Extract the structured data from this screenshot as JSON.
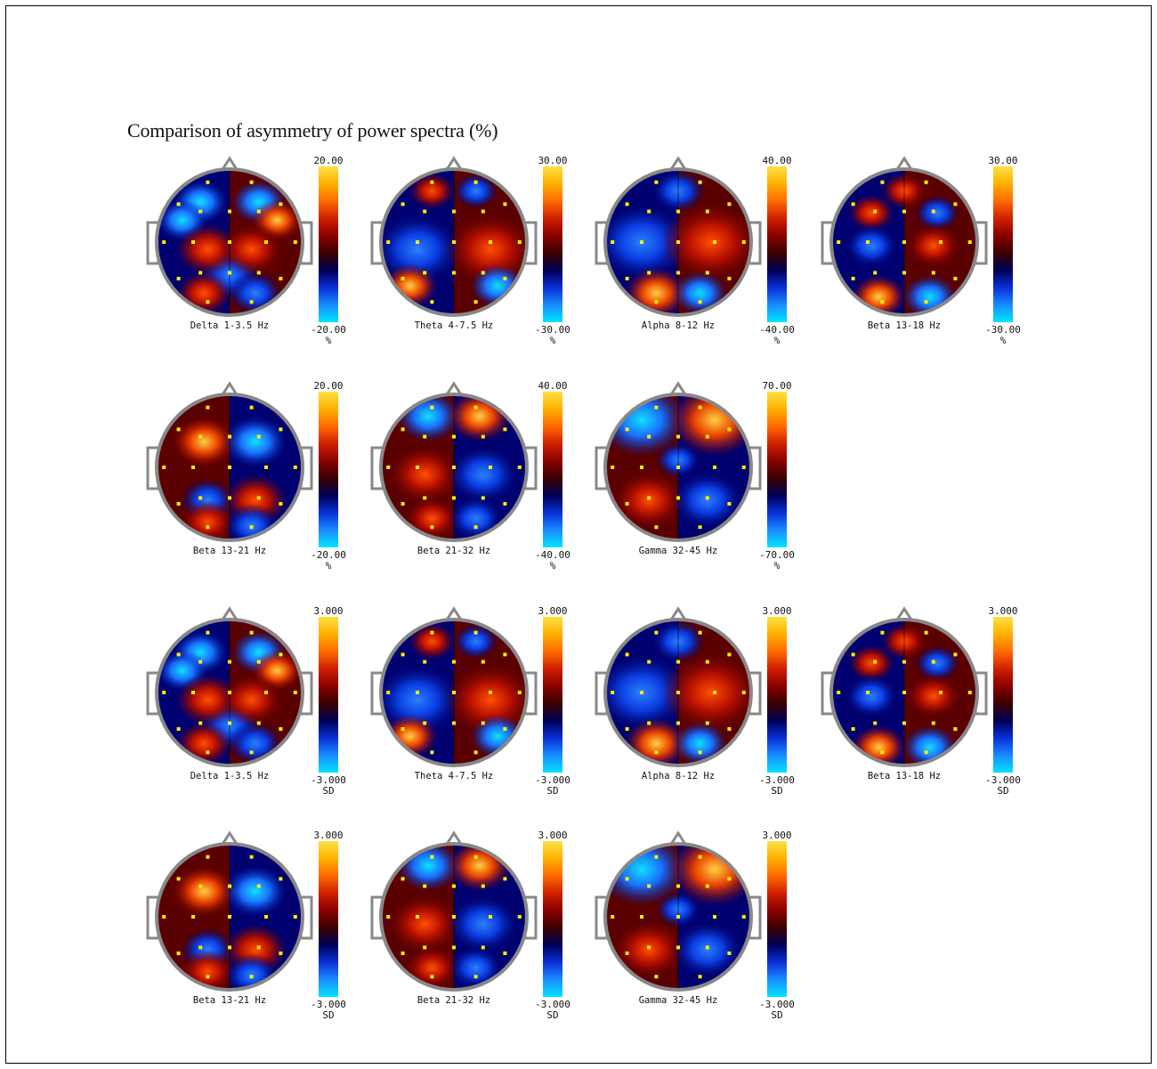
{
  "title": "Comparison of asymmetry of power spectra (%)",
  "colors": {
    "colormap": [
      "#00e5ff",
      "#1a8cff",
      "#0a2fd8",
      "#000055",
      "#3a0000",
      "#8b0000",
      "#d02000",
      "#ff6a00",
      "#ffb000",
      "#ffe040"
    ],
    "electrode": "#ffee00",
    "head_outline": "#888888"
  },
  "rows": [
    {
      "maps": [
        {
          "label": "Delta 1-3.5 Hz",
          "max": "20.00",
          "min": "-20.00",
          "unit": "%"
        },
        {
          "label": "Theta 4-7.5 Hz",
          "max": "30.00",
          "min": "-30.00",
          "unit": "%"
        },
        {
          "label": "Alpha 8-12 Hz",
          "max": "40.00",
          "min": "-40.00",
          "unit": "%"
        },
        {
          "label": "Beta 13-18 Hz",
          "max": "30.00",
          "min": "-30.00",
          "unit": "%"
        }
      ]
    },
    {
      "maps": [
        {
          "label": "Beta 13-21 Hz",
          "max": "20.00",
          "min": "-20.00",
          "unit": "%"
        },
        {
          "label": "Beta 21-32 Hz",
          "max": "40.00",
          "min": "-40.00",
          "unit": "%"
        },
        {
          "label": "Gamma 32-45 Hz",
          "max": "70.00",
          "min": "-70.00",
          "unit": "%"
        }
      ]
    },
    {
      "maps": [
        {
          "label": "Delta 1-3.5 Hz",
          "max": "3.000",
          "min": "-3.000",
          "unit": "SD"
        },
        {
          "label": "Theta 4-7.5 Hz",
          "max": "3.000",
          "min": "-3.000",
          "unit": "SD"
        },
        {
          "label": "Alpha 8-12 Hz",
          "max": "3.000",
          "min": "-3.000",
          "unit": "SD"
        },
        {
          "label": "Beta 13-18 Hz",
          "max": "3.000",
          "min": "-3.000",
          "unit": "SD"
        }
      ]
    },
    {
      "maps": [
        {
          "label": "Beta 13-21 Hz",
          "max": "3.000",
          "min": "-3.000",
          "unit": "SD"
        },
        {
          "label": "Beta 21-32 Hz",
          "max": "3.000",
          "min": "-3.000",
          "unit": "SD"
        },
        {
          "label": "Gamma 32-45 Hz",
          "max": "3.000",
          "min": "-3.000",
          "unit": "SD"
        }
      ]
    }
  ]
}
